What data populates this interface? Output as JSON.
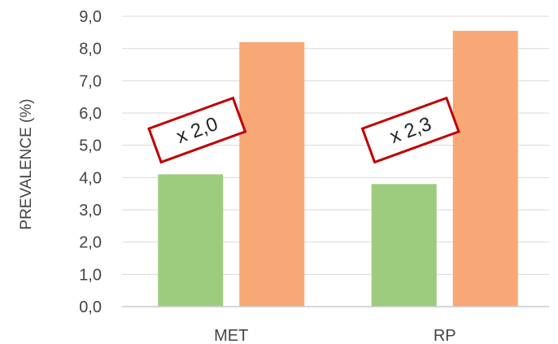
{
  "chart_data": {
    "type": "bar",
    "ylabel": "PREVALENCE (%)",
    "ylim": [
      0,
      9
    ],
    "yticks": [
      "0,0",
      "1,0",
      "2,0",
      "3,0",
      "4,0",
      "5,0",
      "6,0",
      "7,0",
      "8,0",
      "9,0"
    ],
    "categories": [
      "MET",
      "RP"
    ],
    "series": [
      {
        "values": [
          4.1,
          3.8
        ],
        "color": "#9dcc7e"
      },
      {
        "values": [
          8.2,
          8.55
        ],
        "color": "#f8a877"
      }
    ],
    "annotations": [
      {
        "text": "x 2,0",
        "category": "MET"
      },
      {
        "text": "x 2,3",
        "category": "RP"
      }
    ],
    "annotation_border_color": "#c00000",
    "grid": true,
    "grid_color": "#d9d9d9",
    "axis_color": "#c8c8c8"
  }
}
